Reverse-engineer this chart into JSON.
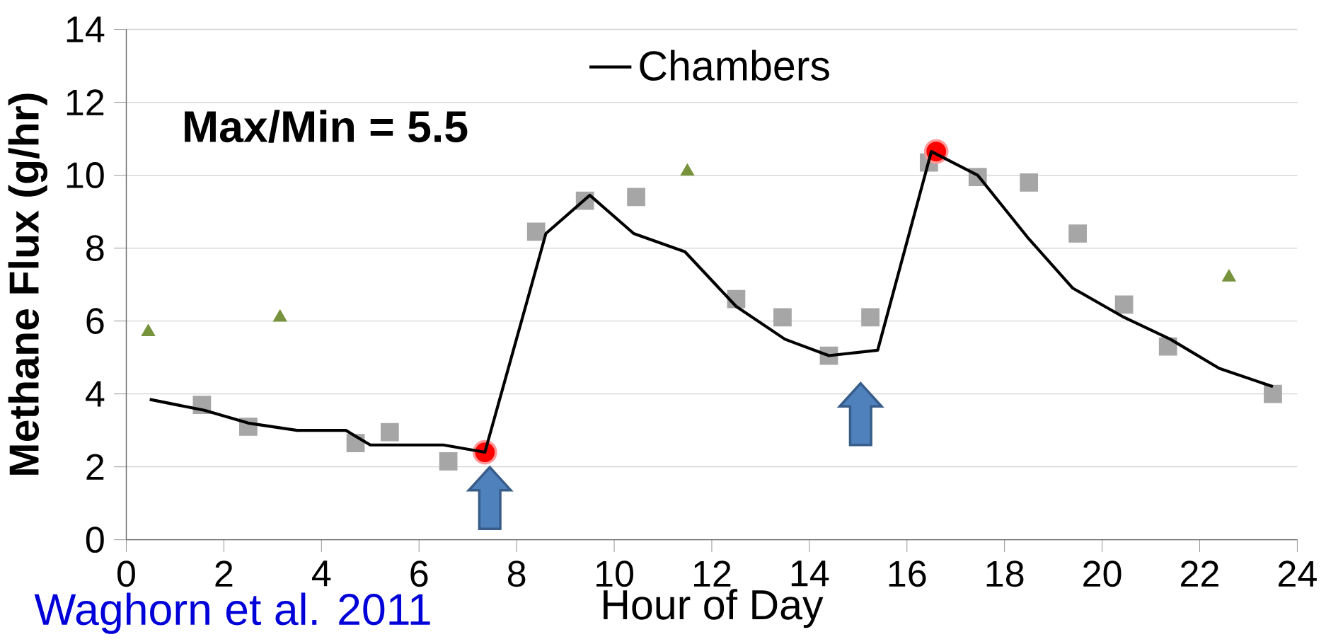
{
  "chart_data": {
    "type": "line",
    "ylabel": "Methane  Flux (g/hr)",
    "xlabel": "Hour of Day",
    "annotations": [
      "Max/Min = 5.5",
      "Waghorn et al. 2011"
    ],
    "xlim": [
      0,
      24
    ],
    "xticks": [
      0,
      2,
      4,
      6,
      8,
      10,
      12,
      14,
      16,
      18,
      20,
      22,
      24
    ],
    "ylim": [
      0,
      14
    ],
    "yticks": [
      0,
      2,
      4,
      6,
      8,
      10,
      12,
      14
    ],
    "grid": "y",
    "legend": "top",
    "series": [
      {
        "name": "Chambers",
        "type": "line",
        "color": "#000000",
        "marker": "none",
        "x": [
          0.48,
          1.6,
          2.5,
          3.5,
          4.5,
          5.0,
          6.5,
          7.35,
          8.6,
          9.5,
          10.4,
          11.45,
          12.5,
          13.5,
          14.4,
          15.4,
          16.5,
          17.45,
          18.5,
          19.4,
          20.45,
          21.4,
          22.4,
          23.5
        ],
        "values": [
          3.85,
          3.55,
          3.2,
          3.0,
          3.0,
          2.6,
          2.6,
          2.4,
          8.4,
          9.45,
          8.4,
          7.9,
          6.4,
          5.5,
          5.05,
          5.2,
          10.65,
          10.0,
          8.25,
          6.9,
          6.1,
          5.5,
          4.7,
          4.2
        ]
      },
      {
        "type": "scatter",
        "color": "#a6a6a6",
        "marker": "square",
        "x": [
          1.55,
          2.5,
          4.7,
          5.4,
          6.6,
          8.4,
          9.4,
          10.45,
          12.5,
          13.45,
          14.4,
          15.25,
          16.45,
          17.45,
          18.5,
          19.5,
          20.45,
          21.35,
          23.5
        ],
        "values": [
          3.7,
          3.1,
          2.65,
          2.95,
          2.15,
          8.45,
          9.3,
          9.4,
          6.6,
          6.1,
          5.05,
          6.1,
          10.35,
          9.95,
          9.8,
          8.4,
          6.45,
          5.3,
          4.0
        ]
      },
      {
        "type": "scatter",
        "color": "#77933c",
        "marker": "triangle",
        "x": [
          0.45,
          3.15,
          11.5,
          22.6
        ],
        "values": [
          5.7,
          6.1,
          10.1,
          7.2
        ]
      },
      {
        "type": "scatter",
        "color": "#ff0000",
        "marker": "circle",
        "x": [
          7.35,
          16.6
        ],
        "values": [
          2.4,
          10.65
        ]
      }
    ]
  }
}
